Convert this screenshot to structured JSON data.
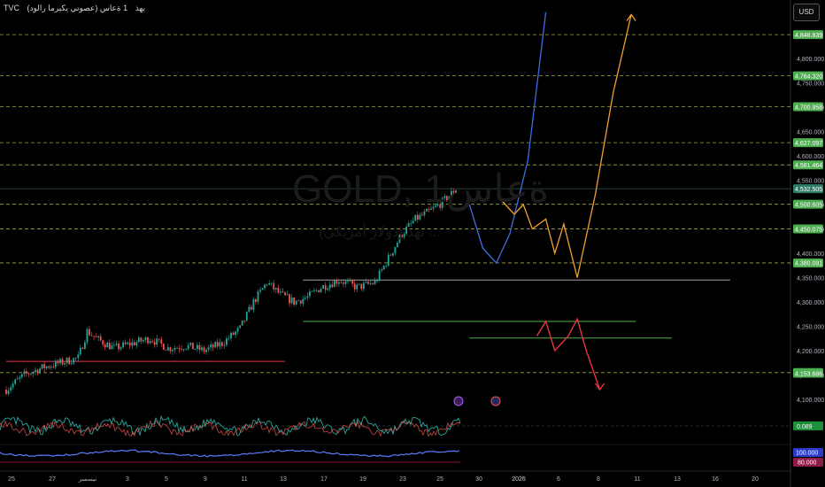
{
  "header": {
    "source": "TVC",
    "description": "(عصوتي یکیرما رالود) بهذ",
    "interval": "1 ةعاس"
  },
  "currency_button": "USD",
  "watermark": {
    "symbol": "GOLD, 1ةعاس",
    "subtitle": "بهذ (دولار أمريكي) ..."
  },
  "colors": {
    "background": "#000000",
    "up": "#26a69a",
    "down": "#ef5350",
    "blue_path": "#3d6fe0",
    "orange_path": "#f0a030",
    "red_path": "#f23645",
    "dashed_level": "#d4e157",
    "badge_green": "#4caf50",
    "ma_line": "#5c7cff"
  },
  "chart_data": [
    {
      "type": "candlestick",
      "symbol": "GOLD",
      "x_ticks": [
        "25",
        "27",
        "نيسمبر",
        "3",
        "5",
        "9",
        "11",
        "13",
        "17",
        "19",
        "23",
        "25",
        "30",
        "2026",
        "6",
        "8",
        "11",
        "13",
        "16",
        "20"
      ],
      "y_ticks": [
        4800,
        4750,
        4700,
        4650,
        4600,
        4550,
        4500,
        4450,
        4400,
        4350,
        4300,
        4250,
        4200,
        4150,
        4100
      ],
      "ylim": [
        4080,
        4920
      ],
      "price_badges": [
        "4,848.839",
        "4,764.320",
        "4,700.958",
        "4,627.097",
        "4,581.464",
        "4,532.505",
        "4,500.605",
        "4,450.075",
        "4,380.091",
        "4,154.917",
        "4,153.686"
      ],
      "current_price": "4,532.505",
      "price_path": [
        {
          "t": 0,
          "p": 4120
        },
        {
          "t": 4,
          "p": 4150
        },
        {
          "t": 8,
          "p": 4165
        },
        {
          "t": 12,
          "p": 4175
        },
        {
          "t": 16,
          "p": 4185
        },
        {
          "t": 18,
          "p": 4240
        },
        {
          "t": 20,
          "p": 4225
        },
        {
          "t": 24,
          "p": 4205
        },
        {
          "t": 28,
          "p": 4215
        },
        {
          "t": 32,
          "p": 4225
        },
        {
          "t": 36,
          "p": 4205
        },
        {
          "t": 40,
          "p": 4210
        },
        {
          "t": 44,
          "p": 4200
        },
        {
          "t": 48,
          "p": 4215
        },
        {
          "t": 52,
          "p": 4245
        },
        {
          "t": 55,
          "p": 4300
        },
        {
          "t": 58,
          "p": 4340
        },
        {
          "t": 61,
          "p": 4315
        },
        {
          "t": 64,
          "p": 4300
        },
        {
          "t": 67,
          "p": 4310
        },
        {
          "t": 70,
          "p": 4330
        },
        {
          "t": 74,
          "p": 4345
        },
        {
          "t": 78,
          "p": 4330
        },
        {
          "t": 82,
          "p": 4340
        },
        {
          "t": 85,
          "p": 4390
        },
        {
          "t": 88,
          "p": 4440
        },
        {
          "t": 91,
          "p": 4470
        },
        {
          "t": 94,
          "p": 4485
        },
        {
          "t": 97,
          "p": 4505
        },
        {
          "t": 100,
          "p": 4532
        }
      ],
      "horizontal_levels": [
        {
          "price": 4848.839,
          "style": "dashed"
        },
        {
          "price": 4764.32,
          "style": "dashed"
        },
        {
          "price": 4700.958,
          "style": "dashed"
        },
        {
          "price": 4627.097,
          "style": "dashed"
        },
        {
          "price": 4581.464,
          "style": "dashed"
        },
        {
          "price": 4532.505,
          "style": "solid"
        },
        {
          "price": 4500.605,
          "style": "dashed"
        },
        {
          "price": 4450.075,
          "style": "dashed"
        },
        {
          "price": 4380.091,
          "style": "dashed"
        },
        {
          "price": 4154.917,
          "style": "dashed"
        }
      ],
      "projections": {
        "blue": [
          {
            "t": 103,
            "p": 4500
          },
          {
            "t": 106,
            "p": 4410
          },
          {
            "t": 109,
            "p": 4380
          },
          {
            "t": 112,
            "p": 4440
          },
          {
            "t": 116,
            "p": 4590
          },
          {
            "t": 120,
            "p": 4895
          }
        ],
        "orange": [
          {
            "t": 110,
            "p": 4510
          },
          {
            "t": 113,
            "p": 4480
          },
          {
            "t": 115,
            "p": 4500
          },
          {
            "t": 117,
            "p": 4450
          },
          {
            "t": 120,
            "p": 4470
          },
          {
            "t": 122,
            "p": 4400
          },
          {
            "t": 124,
            "p": 4460
          },
          {
            "t": 127,
            "p": 4350
          },
          {
            "t": 131,
            "p": 4520
          },
          {
            "t": 135,
            "p": 4730
          },
          {
            "t": 139,
            "p": 4890
          }
        ],
        "red": [
          {
            "t": 118,
            "p": 4230
          },
          {
            "t": 120,
            "p": 4260
          },
          {
            "t": 122,
            "p": 4200
          },
          {
            "t": 125,
            "p": 4230
          },
          {
            "t": 127,
            "p": 4265
          },
          {
            "t": 129,
            "p": 4200
          },
          {
            "t": 132,
            "p": 4120
          }
        ]
      },
      "zones": [
        {
          "from_t": 66,
          "to_t": 161,
          "price": 4345,
          "color": "#a0a0a0"
        },
        {
          "from_t": 66,
          "to_t": 140,
          "price": 4260,
          "color": "#4caf50"
        },
        {
          "from_t": 103,
          "to_t": 148,
          "price": 4226,
          "color": "#4caf50"
        },
        {
          "from_t": 0,
          "to_t": 62,
          "price": 4178,
          "color": "#f23645"
        }
      ]
    },
    {
      "type": "line",
      "name": "oscillator",
      "value_badge": "0.089"
    },
    {
      "type": "line",
      "name": "ma",
      "value_badges": [
        "100.000",
        "80.000"
      ]
    }
  ]
}
